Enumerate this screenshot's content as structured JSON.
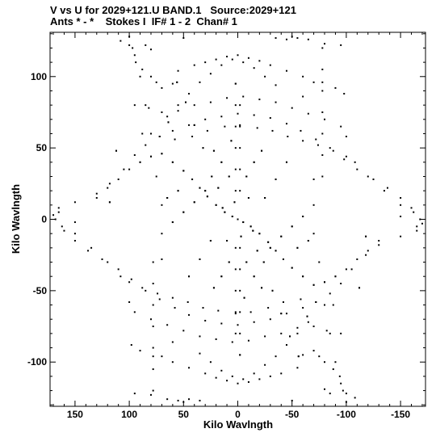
{
  "header": {
    "line1": "V vs U for 2029+121.U BAND.1   Source:2029+121",
    "line2": "Ants * - *    Stokes I  IF# 1 - 2  Chan# 1"
  },
  "chart_data": {
    "type": "scatter",
    "title": "V vs U for 2029+121.U BAND.1   Source:2029+121",
    "subtitle": "Ants * - *    Stokes I  IF# 1 - 2  Chan# 1",
    "xlabel": "Kilo Wavlngth",
    "ylabel": "Kilo Wavlngth",
    "xlim": [
      173,
      -173
    ],
    "ylim": [
      -131,
      131
    ],
    "x_reversed": true,
    "xticks": [
      150,
      100,
      50,
      0,
      -50,
      -100,
      -150
    ],
    "xtick_labels": [
      "150",
      "100",
      "50",
      "0",
      "-50",
      "-100",
      "-150"
    ],
    "yticks": [
      100,
      50,
      0,
      -50,
      -100
    ],
    "ytick_labels": [
      "100",
      "50",
      "0",
      "-50",
      "-100"
    ],
    "grid": false,
    "legend": "none",
    "marker_color": "#000000",
    "series": [
      {
        "points": [
          [
            100,
            122
          ],
          [
            97,
            120
          ],
          [
            85,
            122
          ],
          [
            80,
            119
          ],
          [
            50,
            127
          ],
          [
            -35,
            127
          ],
          [
            -55,
            127
          ],
          [
            -65,
            126
          ],
          [
            -80,
            123
          ],
          [
            -95,
            122
          ],
          [
            94,
            110
          ],
          [
            88,
            105
          ],
          [
            80,
            100
          ],
          [
            75,
            96
          ],
          [
            70,
            92
          ],
          [
            60,
            95
          ],
          [
            55,
            104
          ],
          [
            40,
            108
          ],
          [
            30,
            110
          ],
          [
            20,
            112
          ],
          [
            10,
            114
          ],
          [
            0,
            115
          ],
          [
            -10,
            113
          ],
          [
            -20,
            111
          ],
          [
            -30,
            108
          ],
          [
            -45,
            104
          ],
          [
            -60,
            100
          ],
          [
            -78,
            96
          ],
          [
            -90,
            92
          ],
          [
            -98,
            88
          ],
          [
            95,
            80
          ],
          [
            82,
            78
          ],
          [
            70,
            75
          ],
          [
            55,
            76
          ],
          [
            40,
            80
          ],
          [
            25,
            82
          ],
          [
            10,
            85
          ],
          [
            -5,
            86
          ],
          [
            -20,
            84
          ],
          [
            -35,
            82
          ],
          [
            -50,
            78
          ],
          [
            -65,
            74
          ],
          [
            -80,
            70
          ],
          [
            -95,
            65
          ],
          [
            -100,
            58
          ],
          [
            88,
            60
          ],
          [
            72,
            58
          ],
          [
            58,
            56
          ],
          [
            42,
            58
          ],
          [
            28,
            62
          ],
          [
            12,
            65
          ],
          [
            -2,
            66
          ],
          [
            -18,
            64
          ],
          [
            -32,
            62
          ],
          [
            -46,
            58
          ],
          [
            -60,
            55
          ],
          [
            -74,
            52
          ],
          [
            -88,
            48
          ],
          [
            -100,
            44
          ],
          [
            -108,
            40
          ],
          [
            -120,
            30
          ],
          [
            -135,
            20
          ],
          [
            -150,
            10
          ],
          [
            -162,
            5
          ],
          [
            -170,
            -3
          ],
          [
            -165,
            -8
          ],
          [
            -150,
            -12
          ],
          [
            -130,
            -18
          ],
          [
            -118,
            -25
          ],
          [
            -105,
            -35
          ],
          [
            -95,
            -45
          ],
          [
            -85,
            -52
          ],
          [
            -72,
            -58
          ],
          [
            -60,
            -62
          ],
          [
            -45,
            -66
          ],
          [
            -30,
            -70
          ],
          [
            -15,
            -72
          ],
          [
            0,
            -74
          ],
          [
            15,
            -73
          ],
          [
            30,
            -71
          ],
          [
            45,
            -67
          ],
          [
            58,
            -62
          ],
          [
            72,
            -56
          ],
          [
            85,
            -50
          ],
          [
            98,
            -42
          ],
          [
            110,
            -35
          ],
          [
            125,
            -28
          ],
          [
            138,
            -22
          ],
          [
            150,
            -15
          ],
          [
            160,
            -8
          ],
          [
            168,
            0
          ],
          [
            165,
            5
          ],
          [
            150,
            -2
          ],
          [
            130,
            15
          ],
          [
            120,
            22
          ],
          [
            110,
            28
          ],
          [
            100,
            35
          ],
          [
            90,
            40
          ],
          [
            80,
            44
          ],
          [
            70,
            46
          ],
          [
            60,
            40
          ],
          [
            50,
            34
          ],
          [
            42,
            28
          ],
          [
            35,
            22
          ],
          [
            28,
            16
          ],
          [
            20,
            10
          ],
          [
            12,
            5
          ],
          [
            5,
            2
          ],
          [
            0,
            0
          ],
          [
            -5,
            -2
          ],
          [
            -12,
            -5
          ],
          [
            -20,
            -10
          ],
          [
            -28,
            -16
          ],
          [
            -35,
            -22
          ],
          [
            -42,
            -28
          ],
          [
            -50,
            -34
          ],
          [
            -60,
            -40
          ],
          [
            -70,
            -46
          ],
          [
            -80,
            -44
          ],
          [
            -90,
            -40
          ],
          [
            78,
            -30
          ],
          [
            78,
            -45
          ],
          [
            78,
            -60
          ],
          [
            78,
            -75
          ],
          [
            78,
            -90
          ],
          [
            78,
            -105
          ],
          [
            78,
            -120
          ],
          [
            -70,
            28
          ],
          [
            -70,
            10
          ],
          [
            -70,
            -10
          ],
          [
            -75,
            -30
          ],
          [
            -80,
            -60
          ],
          [
            -85,
            -80
          ],
          [
            -90,
            -100
          ],
          [
            -95,
            -115
          ],
          [
            -100,
            -128
          ],
          [
            -108,
            -125
          ],
          [
            50,
            -128
          ],
          [
            45,
            -126
          ],
          [
            -5,
            -112
          ],
          [
            5,
            -110
          ],
          [
            15,
            -106
          ],
          [
            25,
            -100
          ],
          [
            35,
            -94
          ],
          [
            -15,
            -108
          ],
          [
            -25,
            -102
          ],
          [
            -35,
            -96
          ],
          [
            -45,
            -88
          ],
          [
            -55,
            -80
          ],
          [
            -65,
            -72
          ],
          [
            60,
            -86
          ],
          [
            70,
            -96
          ],
          [
            -2,
            -95
          ],
          [
            -2,
            -80
          ],
          [
            -2,
            -65
          ],
          [
            -2,
            -50
          ],
          [
            -2,
            -35
          ],
          [
            -2,
            -20
          ],
          [
            -2,
            20
          ],
          [
            -2,
            35
          ],
          [
            -2,
            50
          ],
          [
            -2,
            65
          ],
          [
            -2,
            80
          ],
          [
            2,
            95
          ],
          [
            8,
            30
          ],
          [
            8,
            -30
          ],
          [
            15,
            40
          ],
          [
            15,
            -40
          ],
          [
            22,
            48
          ],
          [
            22,
            -48
          ],
          [
            -8,
            30
          ],
          [
            -8,
            -30
          ],
          [
            -15,
            40
          ],
          [
            -15,
            -40
          ],
          [
            -22,
            48
          ],
          [
            -22,
            -48
          ],
          [
            30,
            20
          ],
          [
            40,
            12
          ],
          [
            50,
            5
          ],
          [
            60,
            -2
          ],
          [
            -30,
            -20
          ],
          [
            -40,
            -12
          ],
          [
            -50,
            -5
          ],
          [
            -60,
            2
          ],
          [
            25,
            -15
          ],
          [
            -25,
            15
          ],
          [
            35,
            -28
          ],
          [
            -35,
            28
          ],
          [
            45,
            -40
          ],
          [
            -45,
            40
          ],
          [
            55,
            20
          ],
          [
            65,
            15
          ],
          [
            -55,
            -20
          ],
          [
            -65,
            -15
          ],
          [
            10,
            -15
          ],
          [
            -10,
            15
          ],
          [
            18,
            22
          ],
          [
            -18,
            -22
          ],
          [
            6,
            55
          ],
          [
            -6,
            -55
          ],
          [
            3,
            12
          ],
          [
            -3,
            -12
          ],
          [
            14,
            8
          ],
          [
            -14,
            -8
          ],
          [
            24,
            30
          ],
          [
            -24,
            -30
          ],
          [
            32,
            50
          ],
          [
            -32,
            -50
          ],
          [
            40,
            66
          ],
          [
            -40,
            -66
          ],
          [
            48,
            82
          ],
          [
            -48,
            -82
          ],
          [
            56,
            96
          ],
          [
            -56,
            -96
          ],
          [
            64,
            68
          ],
          [
            -64,
            -68
          ],
          [
            112,
            48
          ],
          [
            -112,
            -48
          ],
          [
            118,
            12
          ],
          [
            -118,
            -12
          ]
        ]
      }
    ]
  }
}
